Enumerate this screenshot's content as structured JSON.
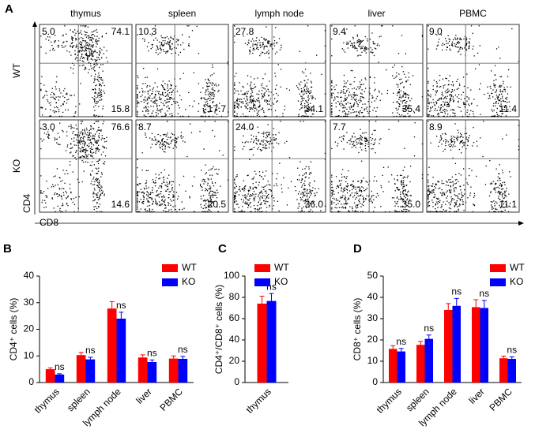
{
  "chart_data": [
    {
      "type": "flow",
      "panel_label": "A",
      "columns": [
        "thymus",
        "spleen",
        "lymph node",
        "liver",
        "PBMC"
      ],
      "rows": [
        "WT",
        "KO"
      ],
      "x_label": "CD8",
      "y_label": "CD4",
      "quadrants": [
        [
          {
            "top_left": "5.0",
            "top_right": "74.1",
            "bottom_right": "15.8"
          },
          {
            "top_left": "10.3",
            "bottom_right": "17.7"
          },
          {
            "top_left": "27.8",
            "bottom_right": "34.1"
          },
          {
            "top_left": "9.4",
            "bottom_right": "35.4"
          },
          {
            "top_left": "9.0",
            "bottom_right": "11.4"
          }
        ],
        [
          {
            "top_left": "3.0",
            "top_right": "76.6",
            "bottom_right": "14.6"
          },
          {
            "top_left": "8.7",
            "bottom_right": "20.5"
          },
          {
            "top_left": "24.0",
            "bottom_right": "36.0"
          },
          {
            "top_left": "7.7",
            "bottom_right": "35.0"
          },
          {
            "top_left": "8.9",
            "bottom_right": "11.1"
          }
        ]
      ]
    },
    {
      "type": "bar",
      "panel_label": "B",
      "y_label": "CD4⁺ cells (%)",
      "categories": [
        "thymus",
        "spleen",
        "lymph node",
        "liver",
        "PBMC"
      ],
      "series": [
        {
          "name": "WT",
          "color": "#ff0000",
          "values": [
            5.0,
            10.3,
            27.8,
            9.4,
            9.0
          ],
          "errors": [
            0.5,
            1.0,
            2.6,
            1.0,
            1.0
          ]
        },
        {
          "name": "KO",
          "color": "#0000ff",
          "values": [
            3.0,
            8.7,
            24.0,
            7.7,
            8.9
          ],
          "errors": [
            0.3,
            0.8,
            2.4,
            0.8,
            0.9
          ]
        }
      ],
      "annotations": [
        "ns",
        "ns",
        "ns",
        "ns",
        "ns"
      ],
      "ylim": [
        0,
        40
      ],
      "yticks": [
        0,
        10,
        20,
        30,
        40
      ]
    },
    {
      "type": "bar",
      "panel_label": "C",
      "y_label": "CD4⁺/CD8⁺ cells (%)",
      "categories": [
        "thymus"
      ],
      "series": [
        {
          "name": "WT",
          "color": "#ff0000",
          "values": [
            74.1
          ],
          "errors": [
            7
          ]
        },
        {
          "name": "KO",
          "color": "#0000ff",
          "values": [
            76.6
          ],
          "errors": [
            7
          ]
        }
      ],
      "annotations": [
        "ns"
      ],
      "ylim": [
        0,
        100
      ],
      "yticks": [
        0,
        20,
        40,
        60,
        80,
        100
      ]
    },
    {
      "type": "bar",
      "panel_label": "D",
      "y_label": "CD8⁺ cells (%)",
      "categories": [
        "thymus",
        "spleen",
        "lymph node",
        "liver",
        "PBMC"
      ],
      "series": [
        {
          "name": "WT",
          "color": "#ff0000",
          "values": [
            15.8,
            17.7,
            34.1,
            35.4,
            11.4
          ],
          "errors": [
            1.5,
            1.6,
            3.0,
            3.5,
            1.0
          ]
        },
        {
          "name": "KO",
          "color": "#0000ff",
          "values": [
            14.6,
            20.5,
            36.0,
            35.0,
            11.1
          ],
          "errors": [
            1.4,
            1.8,
            3.5,
            3.5,
            1.0
          ]
        }
      ],
      "annotations": [
        "ns",
        "ns",
        "ns",
        "ns",
        "ns"
      ],
      "ylim": [
        0,
        50
      ],
      "yticks": [
        0,
        10,
        20,
        30,
        40,
        50
      ]
    }
  ]
}
